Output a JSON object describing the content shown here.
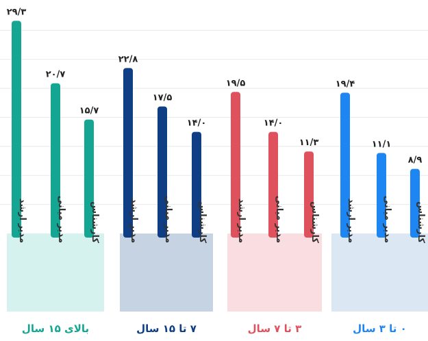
{
  "chart_data": {
    "type": "bar",
    "ylim": [
      0,
      30
    ],
    "grid": true,
    "groups": [
      {
        "name": "بالای ۱۵ سال",
        "color": "#14a693",
        "band_color": "#d5f2ee",
        "label_color": "#14a693",
        "bars": [
          {
            "category": "مدیر ارشد",
            "value": 29.3,
            "label": "۲۹/۳"
          },
          {
            "category": "مدیر میانی",
            "value": 20.7,
            "label": "۲۰/۷"
          },
          {
            "category": "کارشناس",
            "value": 15.7,
            "label": "۱۵/۷"
          }
        ]
      },
      {
        "name": "۷ تا ۱۵ سال",
        "color": "#0f3e85",
        "band_color": "#c5d3e2",
        "label_color": "#0f3e85",
        "bars": [
          {
            "category": "مدیر ارشد",
            "value": 22.8,
            "label": "۲۲/۸"
          },
          {
            "category": "مدیر میانی",
            "value": 17.5,
            "label": "۱۷/۵"
          },
          {
            "category": "کارشناس",
            "value": 14.0,
            "label": "۱۴/۰"
          }
        ]
      },
      {
        "name": "۳ تا ۷ سال",
        "color": "#e0515e",
        "band_color": "#f9dde0",
        "label_color": "#e0515e",
        "bars": [
          {
            "category": "مدیر ارشد",
            "value": 19.5,
            "label": "۱۹/۵"
          },
          {
            "category": "مدیر میانی",
            "value": 14.0,
            "label": "۱۴/۰"
          },
          {
            "category": "کارشناس",
            "value": 11.3,
            "label": "۱۱/۳"
          }
        ]
      },
      {
        "name": "۰ تا ۳ سال",
        "color": "#1e86f2",
        "band_color": "#dbe8f4",
        "label_color": "#1e86f2",
        "bars": [
          {
            "category": "مدیر ارشد",
            "value": 19.4,
            "label": "۱۹/۴"
          },
          {
            "category": "مدیر میانی",
            "value": 11.1,
            "label": "۱۱/۱"
          },
          {
            "category": "کارشناس",
            "value": 8.9,
            "label": "۸/۹"
          }
        ]
      }
    ]
  }
}
